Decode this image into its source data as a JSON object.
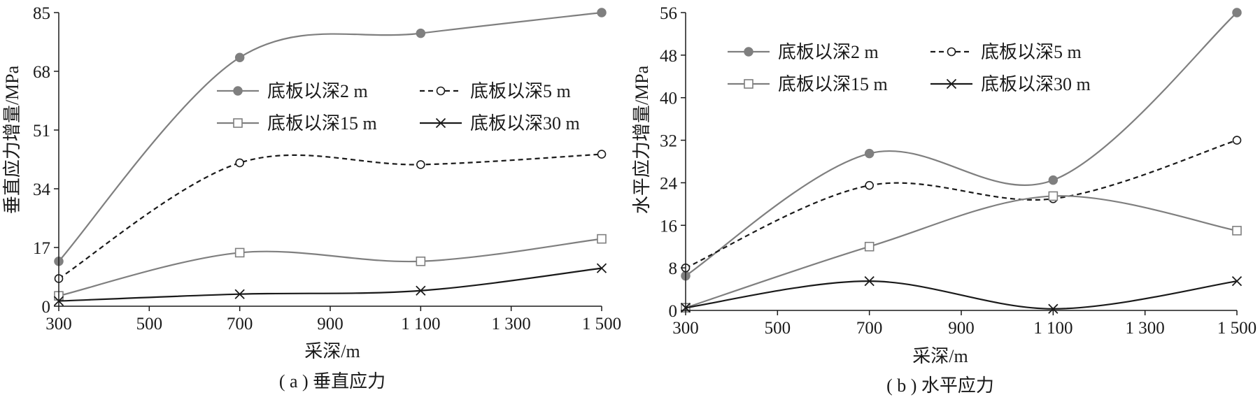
{
  "chart_data": [
    {
      "type": "line",
      "id": "a",
      "caption": "( a ) 垂直应力",
      "xlabel": "采深/m",
      "ylabel": "垂直应力增量/MPa",
      "x_ticks": [
        300,
        500,
        700,
        900,
        1100,
        1300,
        1500
      ],
      "x_tick_labels": [
        "300",
        "500",
        "700",
        "900",
        "1 100",
        "1 300",
        "1 500"
      ],
      "xlim": [
        300,
        1500
      ],
      "y_ticks": [
        0,
        17,
        34,
        51,
        68,
        85
      ],
      "y_tick_labels": [
        "0",
        "17",
        "34",
        "51",
        "68",
        "85"
      ],
      "ylim": [
        0,
        85
      ],
      "legend_position": "upper-right",
      "x": [
        300,
        700,
        1100,
        1500
      ],
      "series": [
        {
          "name": "底板以深2 m",
          "values": [
            13,
            72,
            79,
            85
          ],
          "color": "#7f7f7f",
          "dash": "solid",
          "marker": "filled-circle"
        },
        {
          "name": "底板以深5 m",
          "values": [
            8,
            41.5,
            41,
            44
          ],
          "color": "#1a1a1a",
          "dash": "dashed",
          "marker": "open-circle"
        },
        {
          "name": "底板以深15 m",
          "values": [
            3,
            15.5,
            13,
            19.5
          ],
          "color": "#7f7f7f",
          "dash": "solid",
          "marker": "open-square"
        },
        {
          "name": "底板以深30 m",
          "values": [
            1.5,
            3.5,
            4.5,
            11
          ],
          "color": "#1a1a1a",
          "dash": "solid",
          "marker": "x"
        }
      ]
    },
    {
      "type": "line",
      "id": "b",
      "caption": "( b ) 水平应力",
      "xlabel": "采深/m",
      "ylabel": "水平应力增量/MPa",
      "x_ticks": [
        300,
        500,
        700,
        900,
        1100,
        1300,
        1500
      ],
      "x_tick_labels": [
        "300",
        "500",
        "700",
        "900",
        "1 100",
        "1 300",
        "1 500"
      ],
      "xlim": [
        300,
        1500
      ],
      "y_ticks": [
        0,
        8,
        16,
        24,
        32,
        40,
        48,
        56
      ],
      "y_tick_labels": [
        "0",
        "8",
        "16",
        "24",
        "32",
        "40",
        "48",
        "56"
      ],
      "ylim": [
        0,
        56
      ],
      "legend_position": "upper-left",
      "x": [
        300,
        700,
        1100,
        1500
      ],
      "series": [
        {
          "name": "底板以深2 m",
          "values": [
            6.5,
            29.5,
            24.5,
            56
          ],
          "color": "#7f7f7f",
          "dash": "solid",
          "marker": "filled-circle"
        },
        {
          "name": "底板以深5 m",
          "values": [
            8,
            23.5,
            21,
            32
          ],
          "color": "#1a1a1a",
          "dash": "dashed",
          "marker": "open-circle"
        },
        {
          "name": "底板以深15 m",
          "values": [
            0.5,
            12,
            21.5,
            15
          ],
          "color": "#7f7f7f",
          "dash": "solid",
          "marker": "open-square"
        },
        {
          "name": "底板以深30 m",
          "values": [
            0.5,
            5.5,
            0.3,
            5.5
          ],
          "color": "#1a1a1a",
          "dash": "solid",
          "marker": "x"
        }
      ]
    }
  ]
}
